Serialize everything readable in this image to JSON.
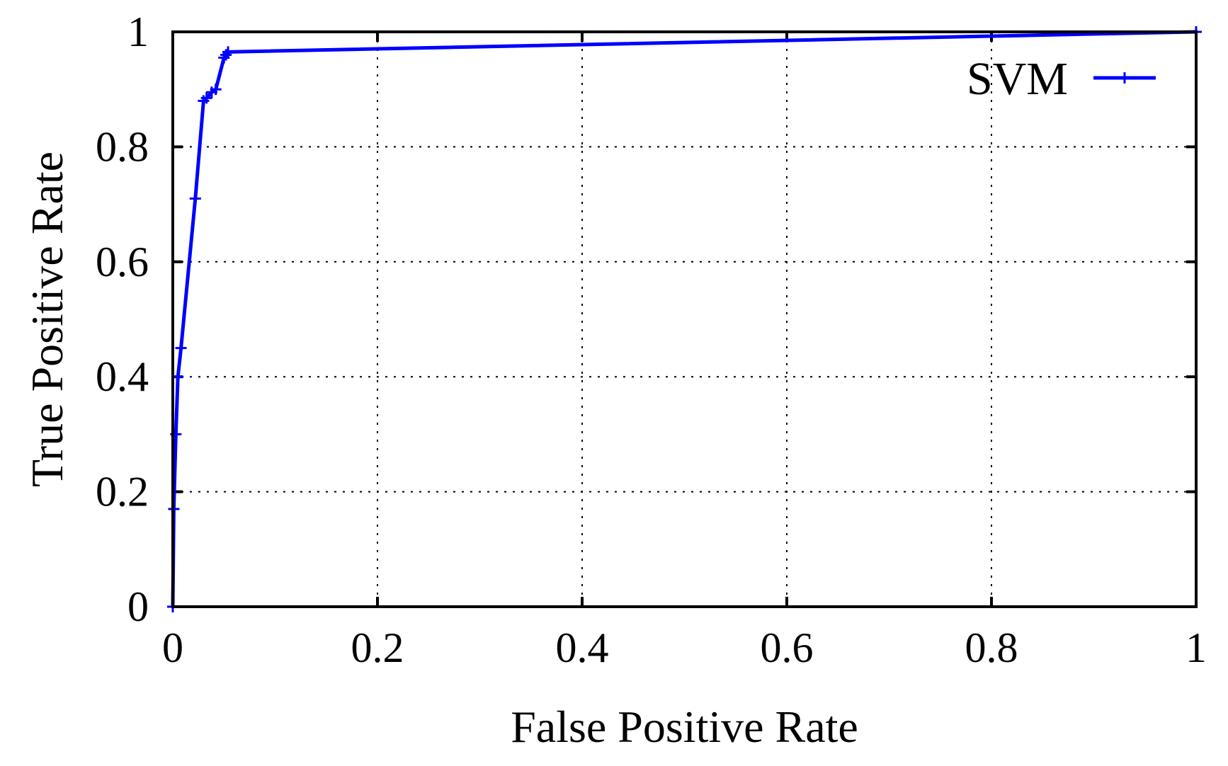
{
  "chart_data": {
    "type": "line",
    "title": "",
    "xlabel": "False Positive Rate",
    "ylabel": "True Positive Rate",
    "xlim": [
      0,
      1
    ],
    "ylim": [
      0,
      1
    ],
    "grid": true,
    "legend_position": "top-right",
    "x_ticks": [
      {
        "value": 0,
        "label": "0"
      },
      {
        "value": 0.2,
        "label": "0.2"
      },
      {
        "value": 0.4,
        "label": "0.4"
      },
      {
        "value": 0.6,
        "label": "0.6"
      },
      {
        "value": 0.8,
        "label": "0.8"
      },
      {
        "value": 1,
        "label": "1"
      }
    ],
    "y_ticks": [
      {
        "value": 0,
        "label": "0"
      },
      {
        "value": 0.2,
        "label": "0.2"
      },
      {
        "value": 0.4,
        "label": "0.4"
      },
      {
        "value": 0.6,
        "label": "0.6"
      },
      {
        "value": 0.8,
        "label": "0.8"
      },
      {
        "value": 1,
        "label": "1"
      }
    ],
    "series": [
      {
        "name": "SVM",
        "color": "#0000ff",
        "x": [
          0.0,
          0.001,
          0.003,
          0.005,
          0.008,
          0.022,
          0.03,
          0.033,
          0.038,
          0.042,
          0.05,
          0.052,
          0.054,
          1.0
        ],
        "y": [
          0.0,
          0.17,
          0.3,
          0.4,
          0.45,
          0.71,
          0.88,
          0.885,
          0.895,
          0.9,
          0.955,
          0.96,
          0.965,
          1.0
        ]
      }
    ]
  }
}
